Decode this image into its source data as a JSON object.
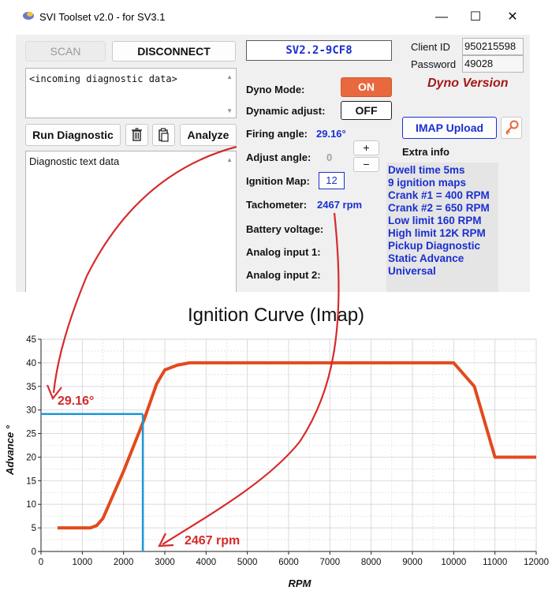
{
  "window": {
    "title": "SVI Toolset v2.0 - for SV3.1",
    "controls": {
      "minimize": "—",
      "maximize": "☐",
      "close": "✕"
    }
  },
  "toolbar": {
    "scan_label": "SCAN",
    "disconnect_label": "DISCONNECT",
    "device_id": "SV2.2-9CF8"
  },
  "client": {
    "client_id_label": "Client ID",
    "client_id_value": "950215598",
    "password_label": "Password",
    "password_value": "49028",
    "version_label": "Dyno Version"
  },
  "diagnostic": {
    "incoming_text": "<incoming diagnostic data>",
    "run_label": "Run Diagnostic",
    "analyze_label": "Analyze",
    "output_text": "Diagnostic text data"
  },
  "dyno": {
    "dyno_mode_label": "Dyno Mode:",
    "dyno_mode_value": "ON",
    "dynamic_adjust_label": "Dynamic adjust:",
    "dynamic_adjust_value": "OFF",
    "firing_angle_label": "Firing angle:",
    "firing_angle_value": "29.16°",
    "adjust_angle_label": "Adjust angle:",
    "adjust_angle_value": "0",
    "plus": "+",
    "minus": "−",
    "ignition_map_label": "Ignition Map:",
    "ignition_map_value": "12",
    "tachometer_label": "Tachometer:",
    "tachometer_value": "2467 rpm",
    "battery_label": "Battery voltage:",
    "analog1_label": "Analog input 1:",
    "analog2_label": "Analog input 2:"
  },
  "imap": {
    "upload_label": "IMAP Upload",
    "extra_info_label": "Extra info"
  },
  "extra_info": [
    "Dwell time 5ms",
    "9 ignition maps",
    "Crank #1 = 400 RPM",
    "Crank #2 = 650 RPM",
    "Low limit 160 RPM",
    "High limit 12K RPM",
    "Pickup Diagnostic",
    "Static Advance",
    "Universal"
  ],
  "colors": {
    "accent_on": "#e8693e",
    "value_blue": "#1b2fd0",
    "curve": "#e24a1e",
    "marker": "#1a9ad6",
    "annotation": "#d62b2b"
  },
  "annotations": {
    "angle": "29.16°",
    "rpm": "2467 rpm"
  },
  "chart_data": {
    "type": "line",
    "title": "Ignition Curve (Imap)",
    "xlabel": "RPM",
    "ylabel": "Advance °",
    "xlim": [
      0,
      12000
    ],
    "ylim": [
      0,
      45
    ],
    "x_ticks": [
      0,
      1000,
      2000,
      3000,
      4000,
      5000,
      6000,
      7000,
      8000,
      9000,
      10000,
      11000,
      12000
    ],
    "y_ticks": [
      0,
      5,
      10,
      15,
      20,
      25,
      30,
      35,
      40,
      45
    ],
    "grid": true,
    "series": [
      {
        "x": [
          400,
          1200,
          1350,
          1500,
          2000,
          2500,
          2800,
          3000,
          3300,
          3600,
          10000,
          10500,
          11000,
          12000
        ],
        "y": [
          5,
          5,
          5.5,
          7,
          17,
          28,
          35.5,
          38.5,
          39.5,
          40,
          40,
          35,
          20,
          20
        ]
      }
    ],
    "marker": {
      "x": 2467,
      "y": 29.16
    }
  }
}
